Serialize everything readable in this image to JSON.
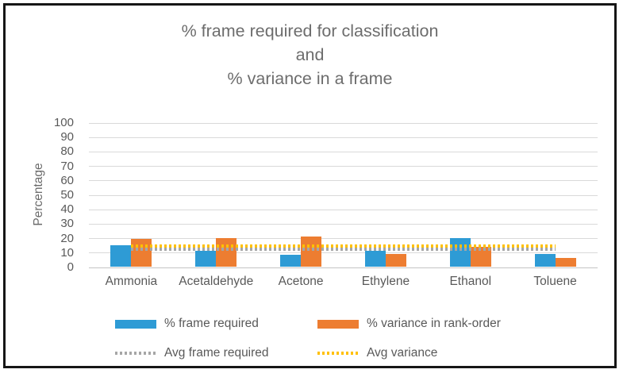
{
  "title_lines": [
    "% frame required for classification",
    "and",
    "% variance in a frame"
  ],
  "colors": {
    "frame_required_blue": "#2E9BD5",
    "variance_orange": "#ED7D31",
    "avg_frame_gray": "#A6A6A6",
    "avg_variance_yellow": "#FFC000",
    "gridline": "#D9D9D9",
    "text_gray": "#595959",
    "title_gray": "#6D6D6D",
    "border_black": "#161616"
  },
  "chart_data": {
    "type": "bar",
    "title": "% frame required for classification and % variance in a frame",
    "categories": [
      "Ammonia",
      "Acetaldehyde",
      "Acetone",
      "Ethylene",
      "Ethanol",
      "Toluene"
    ],
    "series": [
      {
        "name": "% frame required",
        "type": "bar",
        "color": "#2E9BD5",
        "values": [
          15,
          11,
          8,
          11,
          20,
          9
        ]
      },
      {
        "name": "% variance in rank-order",
        "type": "bar",
        "color": "#ED7D31",
        "values": [
          19,
          20,
          21,
          9,
          14,
          6
        ]
      },
      {
        "name": "Avg frame required",
        "type": "line",
        "style": "dotted",
        "color": "#A6A6A6",
        "value": 12.5
      },
      {
        "name": "Avg variance",
        "type": "line",
        "style": "dotted",
        "color": "#FFC000",
        "value": 15
      }
    ],
    "xlabel": "",
    "ylabel": "Percentage",
    "ylim": [
      0,
      100
    ],
    "ytick_step": 10,
    "yticks": [
      0,
      10,
      20,
      30,
      40,
      50,
      60,
      70,
      80,
      90,
      100
    ],
    "grid": true,
    "legend_position": "bottom"
  }
}
